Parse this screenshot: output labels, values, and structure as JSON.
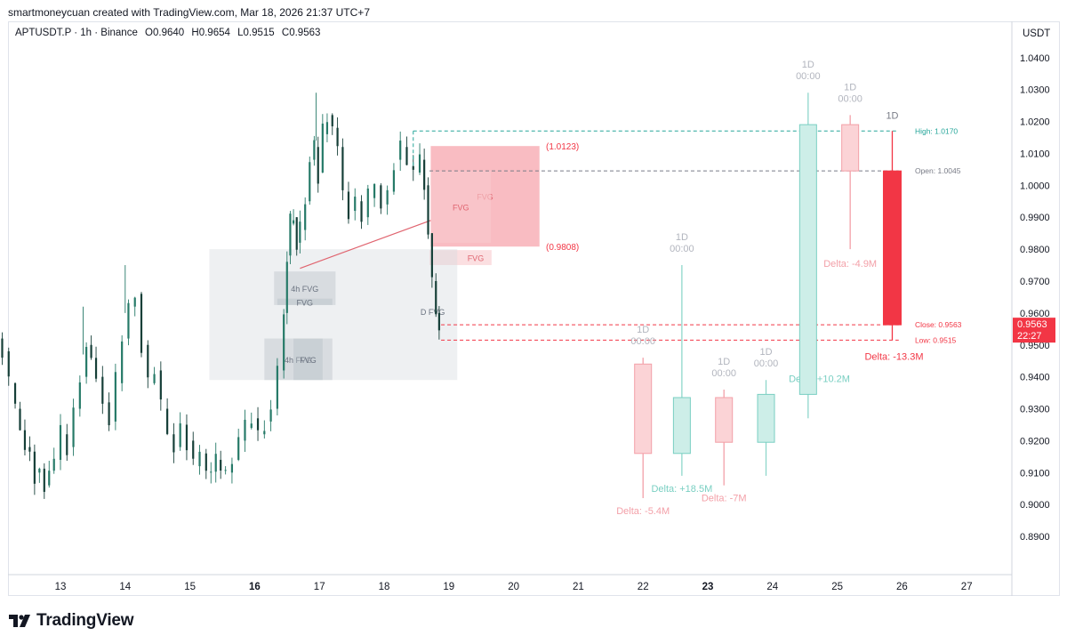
{
  "attribution": "smartmoneycuan created with TradingView.com, Mar 18, 2026 21:37 UTC+7",
  "legend": {
    "symbol": "APTUSDT.P · 1h · Binance",
    "o_label": "O",
    "o_value": "0.9640",
    "h_label": "H",
    "h_value": "0.9654",
    "l_label": "L",
    "l_value": "0.9515",
    "c_label": "C",
    "c_value": "0.9563"
  },
  "currency": "USDT",
  "brand": "TradingView",
  "colors": {
    "up": "#2e7d6b",
    "down": "#1f6b5c",
    "bull_ghost": "#9fd8cf",
    "bear_ghost": "#f7b7bc",
    "bear_strong": "#f23645",
    "fvg_fill": "#f8c0c6",
    "zone_fill": "#d5d9de"
  },
  "chart_data": {
    "type": "candlestick",
    "timeframe": "1h",
    "y_ticks": [
      "1.0400",
      "1.0300",
      "1.0200",
      "1.0100",
      "1.0000",
      "0.9900",
      "0.9800",
      "0.9700",
      "0.9600",
      "0.9500",
      "0.9400",
      "0.9300",
      "0.9200",
      "0.9100",
      "0.9000",
      "0.8900"
    ],
    "x_ticks": [
      "13",
      "14",
      "15",
      "16",
      "17",
      "18",
      "19",
      "20",
      "21",
      "22",
      "23",
      "24",
      "25",
      "26",
      "27"
    ],
    "bold_x_ticks": [
      "16",
      "23"
    ],
    "ylim": [
      0.8825,
      1.043
    ],
    "price_path": [
      [
        12.0,
        0.952
      ],
      [
        12.1,
        0.948
      ],
      [
        12.2,
        0.938
      ],
      [
        12.3,
        0.93
      ],
      [
        12.45,
        0.918
      ],
      [
        12.6,
        0.91
      ],
      [
        12.75,
        0.906
      ],
      [
        12.9,
        0.914
      ],
      [
        13.0,
        0.922
      ],
      [
        13.1,
        0.918
      ],
      [
        13.2,
        0.93
      ],
      [
        13.3,
        0.94
      ],
      [
        13.4,
        0.95
      ],
      [
        13.55,
        0.94
      ],
      [
        13.65,
        0.932
      ],
      [
        13.75,
        0.926
      ],
      [
        13.85,
        0.938
      ],
      [
        13.95,
        0.952
      ],
      [
        14.05,
        0.962
      ],
      [
        14.15,
        0.966
      ],
      [
        14.25,
        0.95
      ],
      [
        14.35,
        0.938
      ],
      [
        14.45,
        0.942
      ],
      [
        14.55,
        0.93
      ],
      [
        14.65,
        0.922
      ],
      [
        14.75,
        0.918
      ],
      [
        14.85,
        0.925
      ],
      [
        14.95,
        0.92
      ],
      [
        15.05,
        0.912
      ],
      [
        15.15,
        0.916
      ],
      [
        15.25,
        0.91
      ],
      [
        15.4,
        0.914
      ],
      [
        15.55,
        0.91
      ],
      [
        15.65,
        0.914
      ],
      [
        15.75,
        0.92
      ],
      [
        15.85,
        0.924
      ],
      [
        15.95,
        0.927
      ],
      [
        16.05,
        0.922
      ],
      [
        16.15,
        0.926
      ],
      [
        16.25,
        0.93
      ],
      [
        16.35,
        0.942
      ],
      [
        16.45,
        0.96
      ],
      [
        16.5,
        0.978
      ],
      [
        16.55,
        0.988
      ],
      [
        16.6,
        0.99
      ],
      [
        16.65,
        0.982
      ],
      [
        16.7,
        0.986
      ],
      [
        16.78,
        0.995
      ],
      [
        16.85,
        1.008
      ],
      [
        16.92,
        1.012
      ],
      [
        16.98,
        1.004
      ],
      [
        17.05,
        1.016
      ],
      [
        17.12,
        1.022
      ],
      [
        17.2,
        1.018
      ],
      [
        17.28,
        1.012
      ],
      [
        17.36,
        0.998
      ],
      [
        17.45,
        0.992
      ],
      [
        17.55,
        0.995
      ],
      [
        17.65,
        0.99
      ],
      [
        17.75,
        0.996
      ],
      [
        17.85,
        1.0
      ],
      [
        17.95,
        0.994
      ],
      [
        18.05,
        0.998
      ],
      [
        18.15,
        1.008
      ],
      [
        18.25,
        1.012
      ],
      [
        18.35,
        1.006
      ],
      [
        18.45,
        1.004
      ],
      [
        18.55,
        1.008
      ],
      [
        18.62,
        1.0
      ],
      [
        18.68,
        0.985
      ],
      [
        18.74,
        0.97
      ],
      [
        18.8,
        0.96
      ],
      [
        18.85,
        0.9563
      ]
    ],
    "forecast_candles": [
      {
        "label": "1D",
        "time": "00:00",
        "day": 22.0,
        "open": 0.944,
        "high": 0.946,
        "low": 0.902,
        "close": 0.916,
        "delta": "Delta: -5.4M",
        "direction": "down"
      },
      {
        "label": "1D",
        "time": "00:00",
        "day": 22.6,
        "open": 0.916,
        "high": 0.975,
        "low": 0.909,
        "close": 0.9335,
        "delta": "Delta: +18.5M",
        "direction": "up"
      },
      {
        "label": "1D",
        "time": "00:00",
        "day": 23.25,
        "open": 0.9335,
        "high": 0.936,
        "low": 0.906,
        "close": 0.9195,
        "delta": "Delta: -7M",
        "direction": "down"
      },
      {
        "label": "1D",
        "time": "00:00",
        "day": 23.9,
        "open": 0.9195,
        "high": 0.939,
        "low": 0.909,
        "close": 0.9345,
        "delta": "Delta: +10.2M",
        "direction": "up"
      },
      {
        "label": "1D",
        "time": "00:00",
        "day": 24.55,
        "open": 0.9345,
        "high": 1.029,
        "low": 0.927,
        "close": 1.019,
        "delta": "",
        "direction": "up"
      },
      {
        "label": "1D",
        "time": "00:00",
        "day": 25.2,
        "open": 1.019,
        "high": 1.022,
        "low": 0.98,
        "close": 1.0045,
        "delta": "Delta: -4.9M",
        "direction": "down"
      },
      {
        "label": "1D",
        "time": "",
        "day": 25.85,
        "open": 1.0045,
        "high": 1.017,
        "low": 0.9515,
        "close": 0.9563,
        "delta": "Delta: -13.3M",
        "direction": "down_strong"
      }
    ],
    "levels": [
      {
        "label": "High: 1.0170",
        "price": 1.017,
        "color": "#26a69a"
      },
      {
        "label": "Open: 1.0045",
        "price": 1.0045,
        "color": "#787b86"
      },
      {
        "label": "Close: 0.9563",
        "price": 0.9563,
        "color": "#f23645"
      },
      {
        "label": "Low: 0.9515",
        "price": 0.9515,
        "color": "#f23645"
      }
    ],
    "zones": [
      {
        "label": "FVG",
        "kind": "fvg",
        "day_from": 18.72,
        "day_to": 20.4,
        "top": 1.0123,
        "bottom": 0.9808
      },
      {
        "label": "FVG",
        "kind": "fvg_faint",
        "day_from": 18.7,
        "day_to": 19.66,
        "top": 0.9797,
        "bottom": 0.975
      },
      {
        "label": "FVG",
        "kind": "fvg_faint",
        "day_from": 18.72,
        "day_to": 19.65,
        "top": 1.0045,
        "bottom": 0.982
      },
      {
        "label": "",
        "kind": "htf_box",
        "day_from": 15.3,
        "day_to": 19.13,
        "top": 0.98,
        "bottom": 0.939
      },
      {
        "label": "4h FVG",
        "kind": "zone",
        "day_from": 16.3,
        "day_to": 17.25,
        "top": 0.973,
        "bottom": 0.9625
      },
      {
        "label": "FVG",
        "kind": "zone_dark",
        "day_from": 16.35,
        "day_to": 17.2,
        "top": 0.9645,
        "bottom": 0.9625
      },
      {
        "label": "4h FVG",
        "kind": "zone",
        "day_from": 16.15,
        "day_to": 17.2,
        "top": 0.952,
        "bottom": 0.939
      },
      {
        "label": "FVG",
        "kind": "zone_dark",
        "day_from": 16.6,
        "day_to": 17.05,
        "top": 0.952,
        "bottom": 0.939
      },
      {
        "label": "D FVG",
        "kind": "label_only",
        "day_from": 18.6,
        "day_to": 18.9,
        "top": 0.9605,
        "bottom": 0.9605
      }
    ],
    "fvg_price_labels": [
      "(1.0123)",
      "(0.9808)"
    ],
    "trendline": {
      "from_day": 16.7,
      "from_price": 0.974,
      "to_day": 18.72,
      "to_price": 0.989
    },
    "current_price": {
      "value": "0.9563",
      "countdown": "22:27",
      "price": 0.9563
    }
  }
}
